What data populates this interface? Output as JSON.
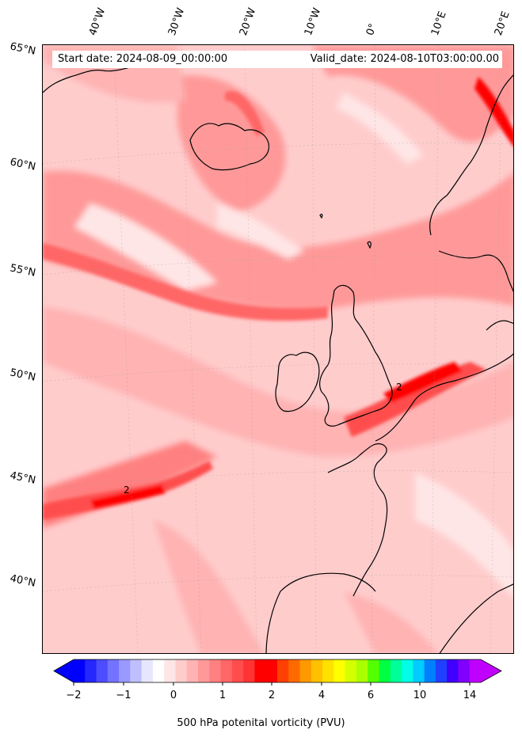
{
  "header": {
    "start_date": "Start date: 2024-08-09_00:00:00",
    "valid_date": "Valid_date: 2024-08-10T03:00:00.00"
  },
  "map": {
    "lon_labels": [
      "40°W",
      "30°W",
      "20°W",
      "10°W",
      "0°",
      "10°E",
      "20°E"
    ],
    "lat_labels": [
      "65°N",
      "60°N",
      "55°N",
      "50°N",
      "45°N",
      "40°N"
    ],
    "contour_labels": [
      "2",
      "2"
    ]
  },
  "colorbar": {
    "title": "500 hPa potenital vorticity (PVU)",
    "tick_labels": [
      "−2",
      "−1",
      "0",
      "1",
      "2",
      "4",
      "6",
      "10",
      "14"
    ],
    "colors": [
      "#0000ff",
      "#2626ff",
      "#4d4dff",
      "#7373ff",
      "#9999ff",
      "#bfbfff",
      "#e6e6ff",
      "#ffffff",
      "#ffe6e6",
      "#ffcccc",
      "#ffb3b3",
      "#ff9999",
      "#ff8080",
      "#ff6666",
      "#ff4d4d",
      "#ff3333",
      "#ff0000",
      "#ff0000",
      "#ff4000",
      "#ff6a00",
      "#ff9900",
      "#ffc000",
      "#ffe100",
      "#ffff00",
      "#d4ff00",
      "#aaff00",
      "#55ff00",
      "#00ff40",
      "#00ff99",
      "#00ffe6",
      "#00ccff",
      "#0080ff",
      "#2040ff",
      "#4000ff",
      "#8000ff",
      "#c000ff"
    ]
  }
}
